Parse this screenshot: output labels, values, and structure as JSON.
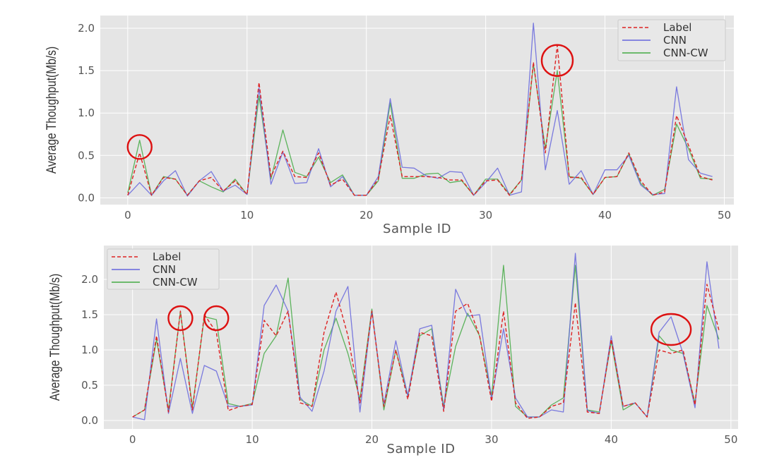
{
  "chart_data": [
    {
      "type": "line",
      "xlabel": "Sample ID",
      "ylabel": "Average Thoughput(Mb/s)",
      "xlim": [
        -2.3,
        50.8
      ],
      "ylim": [
        -0.08,
        2.15
      ],
      "xticks": [
        0,
        10,
        20,
        30,
        40,
        50
      ],
      "yticks": [
        0.0,
        0.5,
        1.0,
        1.5,
        2.0
      ],
      "grid": true,
      "legend_position": "top-right",
      "x": [
        0,
        1,
        2,
        3,
        4,
        5,
        6,
        7,
        8,
        9,
        10,
        11,
        12,
        13,
        14,
        15,
        16,
        17,
        18,
        19,
        20,
        21,
        22,
        23,
        24,
        25,
        26,
        27,
        28,
        29,
        30,
        31,
        32,
        33,
        34,
        35,
        36,
        37,
        38,
        39,
        40,
        41,
        42,
        43,
        44,
        45,
        46,
        47,
        48,
        49
      ],
      "series": [
        {
          "name": "Label",
          "color": "#dd2222",
          "style": "dashed",
          "values": [
            0.03,
            0.53,
            0.03,
            0.24,
            0.22,
            0.03,
            0.2,
            0.24,
            0.08,
            0.2,
            0.04,
            1.36,
            0.25,
            0.55,
            0.25,
            0.24,
            0.53,
            0.15,
            0.22,
            0.03,
            0.03,
            0.22,
            0.97,
            0.25,
            0.25,
            0.25,
            0.24,
            0.21,
            0.21,
            0.03,
            0.2,
            0.21,
            0.03,
            0.21,
            1.6,
            0.53,
            1.8,
            0.24,
            0.24,
            0.04,
            0.24,
            0.25,
            0.53,
            0.2,
            0.03,
            0.07,
            0.97,
            0.62,
            0.25,
            0.21
          ]
        },
        {
          "name": "CNN",
          "color": "#6666dd",
          "style": "solid",
          "values": [
            0.03,
            0.18,
            0.03,
            0.2,
            0.32,
            0.02,
            0.2,
            0.31,
            0.08,
            0.15,
            0.04,
            1.3,
            0.16,
            0.54,
            0.17,
            0.18,
            0.58,
            0.13,
            0.25,
            0.03,
            0.03,
            0.25,
            1.17,
            0.36,
            0.35,
            0.26,
            0.23,
            0.31,
            0.3,
            0.03,
            0.18,
            0.35,
            0.03,
            0.07,
            2.06,
            0.33,
            1.03,
            0.16,
            0.32,
            0.04,
            0.33,
            0.33,
            0.5,
            0.15,
            0.04,
            0.05,
            1.31,
            0.45,
            0.29,
            0.25
          ]
        },
        {
          "name": "CNN-CW",
          "color": "#44aa44",
          "style": "solid",
          "values": [
            0.06,
            0.68,
            0.03,
            0.25,
            0.22,
            0.03,
            0.2,
            0.13,
            0.07,
            0.22,
            0.04,
            1.2,
            0.22,
            0.8,
            0.3,
            0.25,
            0.48,
            0.18,
            0.27,
            0.03,
            0.03,
            0.2,
            1.12,
            0.23,
            0.23,
            0.28,
            0.29,
            0.18,
            0.2,
            0.03,
            0.22,
            0.22,
            0.04,
            0.21,
            1.58,
            0.58,
            1.5,
            0.25,
            0.23,
            0.04,
            0.24,
            0.25,
            0.52,
            0.17,
            0.03,
            0.1,
            0.87,
            0.58,
            0.23,
            0.22
          ]
        }
      ],
      "annotations": [
        {
          "shape": "circle",
          "color": "#dd1111",
          "x": 1,
          "y": 0.6
        },
        {
          "shape": "circle",
          "color": "#dd1111",
          "x": 36,
          "y": 1.62
        }
      ]
    },
    {
      "type": "line",
      "xlabel": "Sample ID",
      "ylabel": "Average Thoughput(Mb/s)",
      "xlim": [
        -2.4,
        50.6
      ],
      "ylim": [
        -0.12,
        2.48
      ],
      "xticks": [
        0,
        10,
        20,
        30,
        40,
        50
      ],
      "yticks": [
        0.0,
        0.5,
        1.0,
        1.5,
        2.0
      ],
      "grid": true,
      "legend_position": "top-left",
      "x": [
        0,
        1,
        2,
        3,
        4,
        5,
        6,
        7,
        8,
        9,
        10,
        11,
        12,
        13,
        14,
        15,
        16,
        17,
        18,
        19,
        20,
        21,
        22,
        23,
        24,
        25,
        26,
        27,
        28,
        29,
        30,
        31,
        32,
        33,
        34,
        35,
        36,
        37,
        38,
        39,
        40,
        41,
        42,
        43,
        44,
        45,
        46,
        47,
        48,
        49
      ],
      "series": [
        {
          "name": "Label",
          "color": "#dd2222",
          "style": "dashed",
          "values": [
            0.05,
            0.15,
            1.2,
            0.12,
            1.55,
            0.15,
            1.5,
            1.25,
            0.14,
            0.2,
            0.23,
            1.42,
            1.2,
            1.55,
            0.25,
            0.2,
            1.25,
            1.82,
            1.2,
            0.25,
            1.55,
            0.2,
            1.0,
            0.3,
            1.25,
            1.2,
            0.13,
            1.55,
            1.66,
            1.2,
            0.27,
            1.55,
            0.25,
            0.03,
            0.05,
            0.2,
            0.25,
            1.67,
            0.12,
            0.1,
            1.15,
            0.2,
            0.25,
            0.05,
            1.0,
            0.95,
            1.0,
            0.22,
            1.93,
            1.28
          ]
        },
        {
          "name": "CNN",
          "color": "#6666dd",
          "style": "solid",
          "values": [
            0.05,
            0.01,
            1.44,
            0.1,
            0.88,
            0.1,
            0.78,
            0.7,
            0.2,
            0.2,
            0.22,
            1.63,
            1.92,
            1.55,
            0.33,
            0.13,
            0.7,
            1.55,
            1.9,
            0.12,
            1.55,
            0.23,
            1.13,
            0.35,
            1.3,
            1.35,
            0.15,
            1.86,
            1.48,
            1.5,
            0.3,
            1.3,
            0.32,
            0.05,
            0.05,
            0.15,
            0.12,
            2.37,
            0.14,
            0.1,
            1.2,
            0.2,
            0.25,
            0.05,
            1.25,
            1.47,
            0.95,
            0.18,
            2.25,
            1.02
          ]
        },
        {
          "name": "CNN-CW",
          "color": "#44aa44",
          "style": "solid",
          "values": [
            0.05,
            0.15,
            1.15,
            0.15,
            1.55,
            0.18,
            1.47,
            1.43,
            0.24,
            0.2,
            0.24,
            0.95,
            1.2,
            2.02,
            0.3,
            0.2,
            1.0,
            1.45,
            0.95,
            0.3,
            1.58,
            0.15,
            1.0,
            0.35,
            1.2,
            1.3,
            0.2,
            1.05,
            1.52,
            1.2,
            0.35,
            2.2,
            0.2,
            0.05,
            0.05,
            0.22,
            0.32,
            2.2,
            0.15,
            0.12,
            1.12,
            0.15,
            0.25,
            0.05,
            1.2,
            1.0,
            0.95,
            0.25,
            1.63,
            1.15
          ]
        }
      ],
      "annotations": [
        {
          "shape": "circle",
          "color": "#dd1111",
          "x": 4,
          "y": 1.45
        },
        {
          "shape": "circle",
          "color": "#dd1111",
          "x": 7,
          "y": 1.45
        },
        {
          "shape": "circle",
          "color": "#dd1111",
          "x": 45,
          "y": 1.29
        }
      ]
    }
  ]
}
